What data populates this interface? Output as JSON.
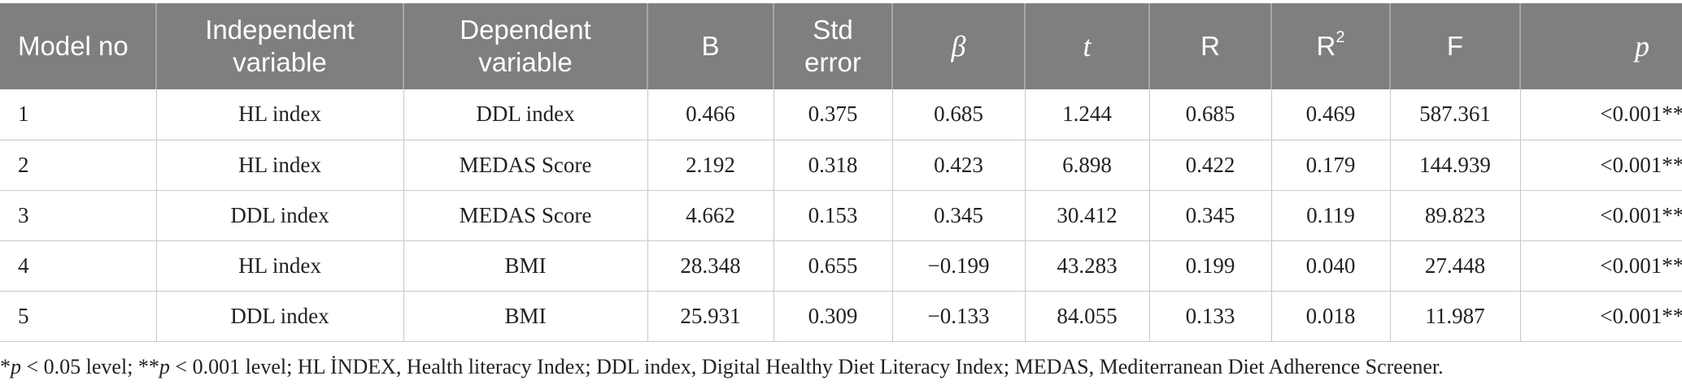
{
  "table": {
    "headers": {
      "model_no": "Model no",
      "independent": "Independent variable",
      "dependent": "Dependent variable",
      "b": "B",
      "std_error": "Std error",
      "beta": "β",
      "t": "t",
      "r": "R",
      "r2_base": "R",
      "r2_sup": "2",
      "f": "F",
      "p": "p"
    },
    "rows": [
      {
        "model": "1",
        "independent": "HL index",
        "dependent": "DDL index",
        "b": "0.466",
        "std_error": "0.375",
        "beta": "0.685",
        "t": "1.244",
        "r": "0.685",
        "r2": "0.469",
        "f": "587.361",
        "p": "<0.001**"
      },
      {
        "model": "2",
        "independent": "HL index",
        "dependent": "MEDAS Score",
        "b": "2.192",
        "std_error": "0.318",
        "beta": "0.423",
        "t": "6.898",
        "r": "0.422",
        "r2": "0.179",
        "f": "144.939",
        "p": "<0.001**"
      },
      {
        "model": "3",
        "independent": "DDL index",
        "dependent": "MEDAS Score",
        "b": "4.662",
        "std_error": "0.153",
        "beta": "0.345",
        "t": "30.412",
        "r": "0.345",
        "r2": "0.119",
        "f": "89.823",
        "p": "<0.001**"
      },
      {
        "model": "4",
        "independent": "HL index",
        "dependent": "BMI",
        "b": "28.348",
        "std_error": "0.655",
        "beta": "−0.199",
        "t": "43.283",
        "r": "0.199",
        "r2": "0.040",
        "f": "27.448",
        "p": "<0.001**"
      },
      {
        "model": "5",
        "independent": "DDL index",
        "dependent": "BMI",
        "b": "25.931",
        "std_error": "0.309",
        "beta": "−0.133",
        "t": "84.055",
        "r": "0.133",
        "r2": "0.018",
        "f": "11.987",
        "p": "<0.001**"
      }
    ]
  },
  "footnote": {
    "star1": "*",
    "p1": "p",
    "part1": " < 0.05 level; **",
    "p2": "p",
    "part2": " < 0.001 level; HL İNDEX, Health literacy Index; DDL index, Digital Healthy Diet Literacy Index; MEDAS, Mediterranean Diet Adherence Screener."
  }
}
